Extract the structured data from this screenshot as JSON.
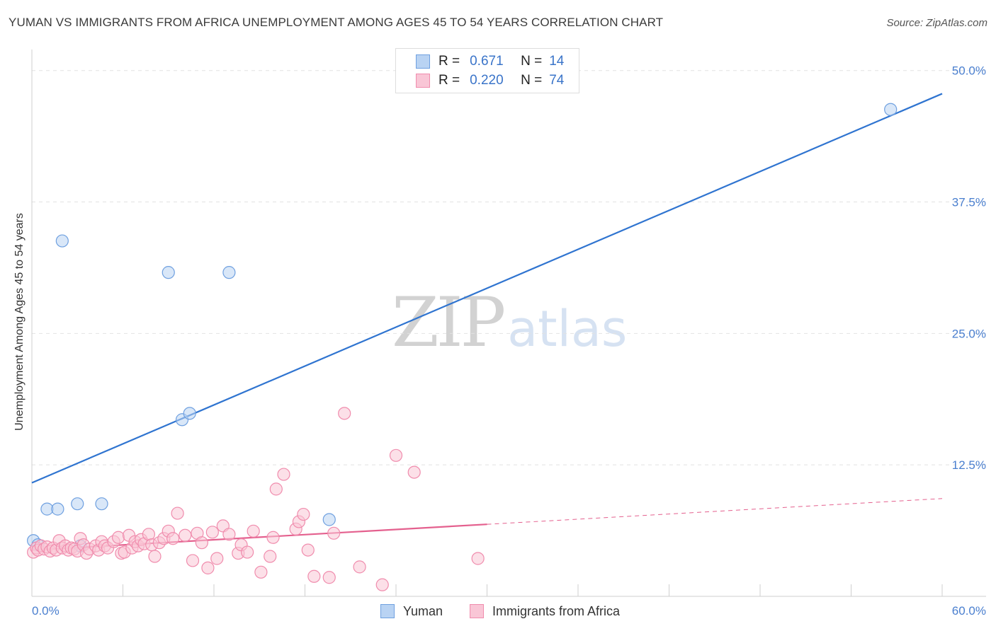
{
  "title": "YUMAN VS IMMIGRANTS FROM AFRICA UNEMPLOYMENT AMONG AGES 45 TO 54 YEARS CORRELATION CHART",
  "source": "Source: ZipAtlas.com",
  "watermark": {
    "zip": "ZIP",
    "atlas": "atlas"
  },
  "legend": {
    "rows": [
      {
        "r_label": "R =",
        "r_value": "0.671",
        "n_label": "N =",
        "n_value": "14"
      },
      {
        "r_label": "R =",
        "r_value": "0.220",
        "n_label": "N =",
        "n_value": "74"
      }
    ]
  },
  "chart_data": {
    "type": "scatter",
    "title": "YUMAN VS IMMIGRANTS FROM AFRICA UNEMPLOYMENT AMONG AGES 45 TO 54 YEARS CORRELATION CHART",
    "xlabel": "",
    "ylabel": "Unemployment Among Ages 45 to 54 years",
    "xlim": [
      0,
      60
    ],
    "ylim": [
      0,
      52
    ],
    "x_tick_labels": [
      "0.0%",
      "60.0%"
    ],
    "y_ticks": [
      12.5,
      25.0,
      37.5,
      50.0
    ],
    "y_tick_labels": [
      "12.5%",
      "25.0%",
      "37.5%",
      "50.0%"
    ],
    "legend_position": "top-center",
    "series": [
      {
        "name": "Yuman",
        "color": "#6fa0e0",
        "fill": "#b9d3f3",
        "line_color": "#2f74d0",
        "r": 0.671,
        "n": 14,
        "trend": {
          "x": [
            0,
            60
          ],
          "y": [
            10.8,
            47.8
          ],
          "dashed_from": null
        },
        "points": [
          [
            0.1,
            5.3
          ],
          [
            0.4,
            4.9
          ],
          [
            1.0,
            8.3
          ],
          [
            1.7,
            8.3
          ],
          [
            2.0,
            33.8
          ],
          [
            3.0,
            8.8
          ],
          [
            3.2,
            4.8
          ],
          [
            4.6,
            8.8
          ],
          [
            9.0,
            30.8
          ],
          [
            9.9,
            16.8
          ],
          [
            10.4,
            17.4
          ],
          [
            13.0,
            30.8
          ],
          [
            19.6,
            7.3
          ],
          [
            56.6,
            46.3
          ]
        ]
      },
      {
        "name": "Immigrants from Africa",
        "color": "#f08cad",
        "fill": "#f9c6d6",
        "line_color": "#e4608e",
        "r": 0.22,
        "n": 74,
        "trend": {
          "x": [
            0,
            60
          ],
          "y": [
            4.4,
            9.3
          ],
          "dashed_from": 30
        },
        "points": [
          [
            0.1,
            4.2
          ],
          [
            0.3,
            4.6
          ],
          [
            0.4,
            4.4
          ],
          [
            0.6,
            4.8
          ],
          [
            0.8,
            4.5
          ],
          [
            1.0,
            4.7
          ],
          [
            1.2,
            4.3
          ],
          [
            1.4,
            4.6
          ],
          [
            1.6,
            4.4
          ],
          [
            1.8,
            5.3
          ],
          [
            2.0,
            4.6
          ],
          [
            2.2,
            4.8
          ],
          [
            2.4,
            4.4
          ],
          [
            2.6,
            4.6
          ],
          [
            2.8,
            4.5
          ],
          [
            3.0,
            4.3
          ],
          [
            3.2,
            5.5
          ],
          [
            3.4,
            4.9
          ],
          [
            3.6,
            4.1
          ],
          [
            3.8,
            4.5
          ],
          [
            4.2,
            4.8
          ],
          [
            4.4,
            4.4
          ],
          [
            4.6,
            5.2
          ],
          [
            4.8,
            4.8
          ],
          [
            5.0,
            4.6
          ],
          [
            5.4,
            5.2
          ],
          [
            5.7,
            5.6
          ],
          [
            5.9,
            4.1
          ],
          [
            6.1,
            4.2
          ],
          [
            6.4,
            5.8
          ],
          [
            6.6,
            4.6
          ],
          [
            6.8,
            5.2
          ],
          [
            7.0,
            4.8
          ],
          [
            7.2,
            5.4
          ],
          [
            7.4,
            5.0
          ],
          [
            7.7,
            5.9
          ],
          [
            7.9,
            4.9
          ],
          [
            8.1,
            3.8
          ],
          [
            8.4,
            5.1
          ],
          [
            8.7,
            5.5
          ],
          [
            9.0,
            6.2
          ],
          [
            9.3,
            5.5
          ],
          [
            9.6,
            7.9
          ],
          [
            10.1,
            5.8
          ],
          [
            10.6,
            3.4
          ],
          [
            10.9,
            6.0
          ],
          [
            11.2,
            5.1
          ],
          [
            11.6,
            2.7
          ],
          [
            11.9,
            6.1
          ],
          [
            12.2,
            3.6
          ],
          [
            12.6,
            6.7
          ],
          [
            13.0,
            5.9
          ],
          [
            13.6,
            4.1
          ],
          [
            13.8,
            4.9
          ],
          [
            14.2,
            4.2
          ],
          [
            14.6,
            6.2
          ],
          [
            15.1,
            2.3
          ],
          [
            15.7,
            3.8
          ],
          [
            15.9,
            5.6
          ],
          [
            16.1,
            10.2
          ],
          [
            16.6,
            11.6
          ],
          [
            17.4,
            6.4
          ],
          [
            17.6,
            7.1
          ],
          [
            17.9,
            7.8
          ],
          [
            18.2,
            4.4
          ],
          [
            18.6,
            1.9
          ],
          [
            19.6,
            1.8
          ],
          [
            19.9,
            6.0
          ],
          [
            20.6,
            17.4
          ],
          [
            21.6,
            2.8
          ],
          [
            23.1,
            1.1
          ],
          [
            24.0,
            13.4
          ],
          [
            25.2,
            11.8
          ],
          [
            29.4,
            3.6
          ]
        ]
      }
    ]
  }
}
